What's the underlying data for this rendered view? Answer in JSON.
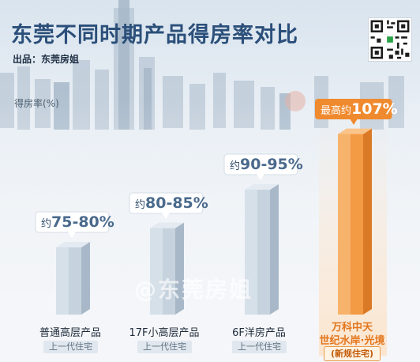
{
  "header": {
    "title": "东莞不同时期产品得房率对比",
    "subtitle": "出品：东莞房姐"
  },
  "watermark": "@东莞房姐",
  "chart_data": {
    "type": "bar",
    "ylabel": "得房率(%)",
    "ylim": [
      60,
      110
    ],
    "categories": [
      "普通高层产品",
      "17F小高层产品",
      "6F洋房产品",
      "万科中天世纪水岸·光境"
    ],
    "category_lines": [
      [
        "普通高层产品"
      ],
      [
        "17F小高层产品"
      ],
      [
        "6F洋房产品"
      ],
      [
        "万科中天",
        "世纪水岸·光境"
      ]
    ],
    "generation_badges": [
      "上一代住宅",
      "上一代住宅",
      "上一代住宅",
      "(新规住宅)"
    ],
    "values": [
      77.5,
      82.5,
      92.5,
      107
    ],
    "value_labels": [
      {
        "prefix": "约",
        "value": "75-80%"
      },
      {
        "prefix": "约",
        "value": "80-85%"
      },
      {
        "prefix": "约",
        "value": "90-95%"
      },
      {
        "prefix": "最高约",
        "value": "107%"
      }
    ],
    "highlight_index": 3,
    "colors": {
      "bar": "#c6d2dd",
      "highlight": "#f39a45",
      "label_text": "#2d4a6a",
      "highlight_text": "#ffffff"
    },
    "grid": false
  }
}
